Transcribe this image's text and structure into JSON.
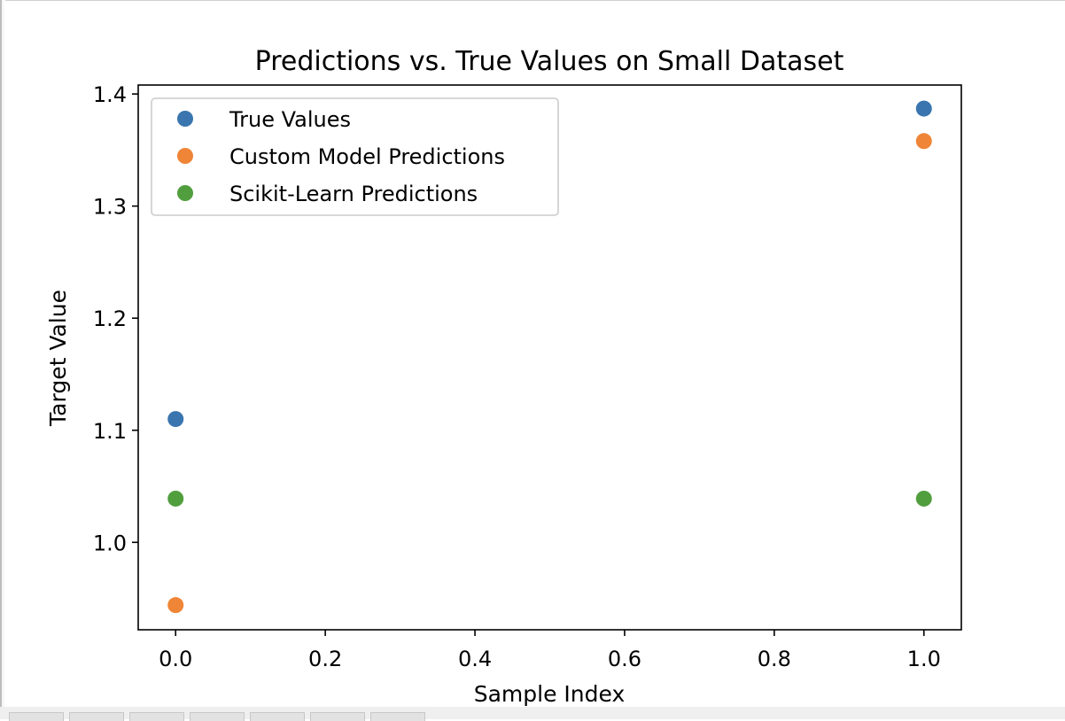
{
  "chart_data": {
    "type": "scatter",
    "title": "Predictions vs. True Values on Small Dataset",
    "xlabel": "Sample Index",
    "ylabel": "Target Value",
    "xlim": [
      -0.05,
      1.05
    ],
    "ylim": [
      0.922,
      1.408
    ],
    "xticks": [
      0.0,
      0.2,
      0.4,
      0.6,
      0.8,
      1.0
    ],
    "xtick_labels": [
      "0.0",
      "0.2",
      "0.4",
      "0.6",
      "0.8",
      "1.0"
    ],
    "yticks": [
      1.0,
      1.1,
      1.2,
      1.3,
      1.4
    ],
    "ytick_labels": [
      "1.0",
      "1.1",
      "1.2",
      "1.3",
      "1.4"
    ],
    "grid": false,
    "legend": "top-left",
    "series": [
      {
        "name": "True Values",
        "color": "#3a75af",
        "x": [
          0,
          1
        ],
        "y": [
          1.11,
          1.387
        ]
      },
      {
        "name": "Custom Model Predictions",
        "color": "#ef8536",
        "x": [
          0,
          1
        ],
        "y": [
          0.944,
          1.358
        ]
      },
      {
        "name": "Scikit-Learn Predictions",
        "color": "#519e3e",
        "x": [
          0,
          1
        ],
        "y": [
          1.039,
          1.039
        ]
      }
    ]
  }
}
